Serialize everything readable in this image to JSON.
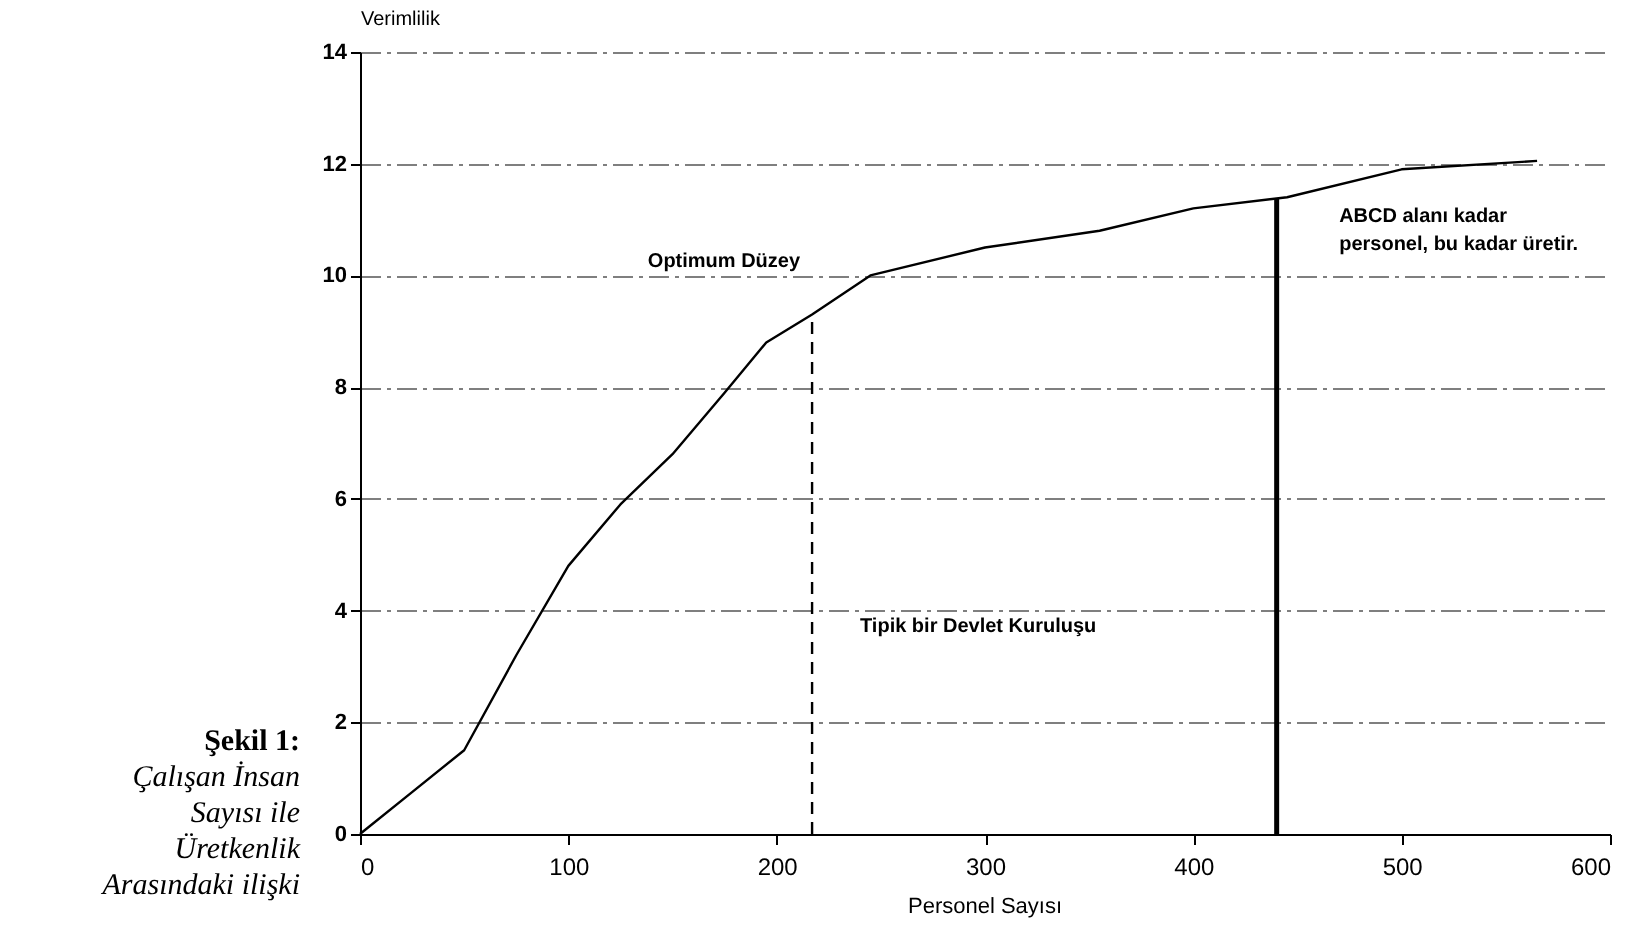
{
  "chart_data": {
    "type": "line",
    "xlabel": "Personel Sayısı",
    "ylabel": "Verimlilik",
    "x": [
      0,
      25,
      50,
      75,
      100,
      125,
      150,
      175,
      195,
      217,
      245,
      300,
      355,
      400,
      445,
      500,
      565
    ],
    "series": [
      {
        "color": "#000000",
        "values": [
          0,
          0.75,
          1.5,
          3.2,
          4.8,
          5.9,
          6.8,
          7.9,
          8.8,
          9.3,
          10.0,
          10.5,
          10.8,
          11.2,
          11.4,
          11.9,
          12.05
        ]
      }
    ],
    "xlim": [
      0,
      600
    ],
    "ylim": [
      0,
      14
    ],
    "xticks": [
      0,
      100,
      200,
      300,
      400,
      500,
      600
    ],
    "yticks": [
      0,
      2,
      4,
      6,
      8,
      10,
      12,
      14
    ],
    "grid": "y",
    "marker": "none",
    "line_style": "solid",
    "ref_lines": [
      {
        "axis": "x",
        "value": 217,
        "line_style": "dashed"
      },
      {
        "axis": "x",
        "value": 440,
        "line_style": "solid"
      }
    ],
    "annotations": [
      {
        "text": "Optimum Düzey",
        "x": 217,
        "y": 9.3
      },
      "ABCD alanı kadar\npersonel, bu kadar üretir.",
      "Tipik bir Devlet Kuruluşu",
      "Şekil 1:",
      "Çalışan İnsan Sayısı ile Üretkenlik Arasındaki ilişki"
    ]
  }
}
